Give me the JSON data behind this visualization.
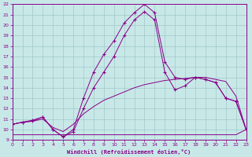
{
  "xlabel": "Windchill (Refroidissement éolien,°C)",
  "background_color": "#c8e8e8",
  "line_color": "#880088",
  "xlim": [
    0,
    23
  ],
  "ylim": [
    9,
    22
  ],
  "xticks": [
    0,
    1,
    2,
    3,
    4,
    5,
    6,
    7,
    8,
    9,
    10,
    11,
    12,
    13,
    14,
    15,
    16,
    17,
    18,
    19,
    20,
    21,
    22,
    23
  ],
  "yticks": [
    9,
    10,
    11,
    12,
    13,
    14,
    15,
    16,
    17,
    18,
    19,
    20,
    21,
    22
  ],
  "grid_color": "#a0c8c8",
  "series": {
    "flat_x": [
      0,
      1,
      2,
      3,
      4,
      5,
      6,
      7,
      8,
      9,
      10,
      11,
      12,
      13,
      14,
      15,
      16,
      17,
      18,
      19,
      20,
      21,
      22,
      23
    ],
    "flat_y": [
      9.5,
      9.5,
      9.5,
      9.5,
      9.5,
      9.5,
      9.5,
      9.5,
      9.5,
      9.5,
      9.5,
      9.5,
      9.5,
      9.5,
      9.5,
      9.5,
      9.5,
      9.5,
      9.5,
      9.5,
      9.5,
      9.5,
      9.5,
      10.0
    ],
    "ramp_x": [
      0,
      1,
      2,
      3,
      4,
      5,
      6,
      7,
      8,
      9,
      10,
      11,
      12,
      13,
      14,
      15,
      16,
      17,
      18,
      19,
      20,
      21,
      22,
      23
    ],
    "ramp_y": [
      10.5,
      10.7,
      10.8,
      11.0,
      10.2,
      9.8,
      10.5,
      11.5,
      12.2,
      12.8,
      13.2,
      13.6,
      14.0,
      14.3,
      14.5,
      14.7,
      14.8,
      14.9,
      15.0,
      15.0,
      14.8,
      14.6,
      13.2,
      10.0
    ],
    "peak1_x": [
      0,
      1,
      2,
      3,
      4,
      5,
      6,
      7,
      8,
      9,
      10,
      11,
      12,
      13,
      14,
      15,
      16,
      17,
      18,
      19,
      20,
      21,
      22,
      23
    ],
    "peak1_y": [
      10.5,
      10.7,
      10.9,
      11.2,
      10.0,
      9.3,
      10.0,
      13.0,
      15.5,
      17.2,
      18.5,
      20.2,
      21.2,
      22.0,
      21.2,
      16.5,
      15.0,
      14.8,
      15.0,
      14.8,
      14.5,
      13.0,
      12.7,
      10.0
    ],
    "peak2_x": [
      0,
      1,
      2,
      3,
      4,
      5,
      6,
      7,
      8,
      9,
      10,
      11,
      12,
      13,
      14,
      15,
      16,
      17,
      18,
      19,
      20,
      21,
      22,
      23
    ],
    "peak2_y": [
      10.5,
      10.7,
      10.8,
      11.2,
      10.0,
      9.3,
      9.8,
      12.0,
      14.0,
      15.5,
      17.0,
      19.0,
      20.5,
      21.3,
      20.5,
      15.5,
      13.8,
      14.2,
      15.0,
      14.8,
      14.5,
      13.0,
      12.7,
      10.0
    ]
  }
}
